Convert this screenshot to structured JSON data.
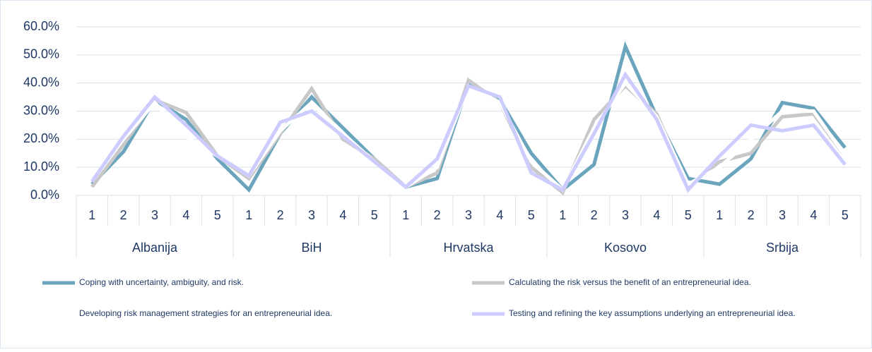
{
  "chart_data": {
    "type": "line",
    "categories": [
      "1",
      "2",
      "3",
      "4",
      "5",
      "1",
      "2",
      "3",
      "4",
      "5",
      "1",
      "2",
      "3",
      "4",
      "5",
      "1",
      "2",
      "3",
      "4",
      "5",
      "1",
      "2",
      "3",
      "4",
      "5"
    ],
    "groups": [
      "Albanija",
      "BiH",
      "Hrvatska",
      "Kosovo",
      "Srbija"
    ],
    "series": [
      {
        "name": "Coping with uncertainty, ambiguity, and risk.",
        "color": "#6aa5bd",
        "values": [
          4,
          15.5,
          34,
          27,
          13,
          2,
          22,
          35,
          24,
          13,
          3,
          6,
          40,
          34,
          15,
          2,
          11,
          53,
          28,
          6,
          4,
          13,
          33,
          31,
          17
        ]
      },
      {
        "name": "Calculating the risk versus the benefit of an entrepreneurial idea.",
        "color": "#c8c8c8",
        "values": [
          3,
          18,
          34,
          29.5,
          14,
          6,
          22,
          38,
          20,
          13,
          3,
          8,
          41,
          33,
          10,
          1,
          27,
          39,
          29,
          3,
          12,
          15,
          28,
          29,
          14
        ]
      },
      {
        "name": "Developing risk management strategies for an entrepreneurial idea.",
        "color": "#ffffff",
        "values": [
          5,
          20,
          33,
          21,
          14,
          7,
          23,
          33,
          22,
          12,
          3,
          10,
          39,
          33,
          12,
          2,
          24,
          40,
          28,
          4,
          10,
          20,
          30,
          30,
          14
        ]
      },
      {
        "name": "Testing and refining the key assumptions underlying an entrepreneurial idea.",
        "color": "#ccccff",
        "values": [
          5,
          21,
          35,
          25,
          14,
          7,
          26,
          30,
          21,
          12,
          3,
          13,
          39,
          35,
          8,
          2,
          22,
          43,
          27,
          2,
          14,
          25,
          23,
          25,
          11
        ]
      }
    ],
    "ylim": [
      0,
      60
    ],
    "yticks": [
      {
        "value": 0,
        "label": "0.0%"
      },
      {
        "value": 10,
        "label": "10.0%"
      },
      {
        "value": 20,
        "label": "20.0%"
      },
      {
        "value": 30,
        "label": "30.0%"
      },
      {
        "value": 40,
        "label": "40.0%"
      },
      {
        "value": 50,
        "label": "50.0%"
      },
      {
        "value": 60,
        "label": "60.0%"
      }
    ],
    "grid": true
  }
}
